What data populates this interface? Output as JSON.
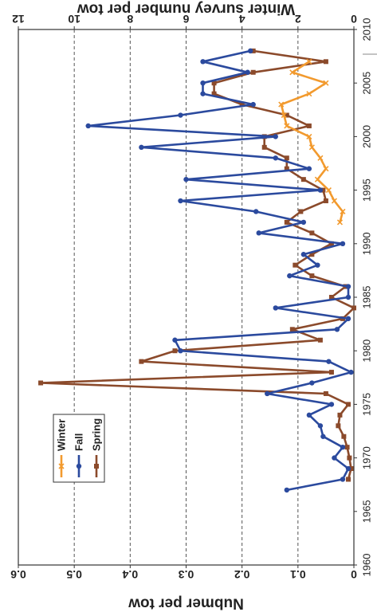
{
  "chart_data": {
    "type": "line",
    "orientation": "rotated-90-clockwise",
    "x": {
      "label": "",
      "range": [
        1960,
        2010
      ],
      "ticks": [
        "1960",
        "1965",
        "1970",
        "1975",
        "1980",
        "1985",
        "1990",
        "1995",
        "2000",
        "2005",
        "2010"
      ]
    },
    "y_left": {
      "label": "Nubmer per tow",
      "range": [
        0,
        0.6
      ],
      "ticks": [
        "0",
        "0.1",
        "0.2",
        "0.3",
        "0.4",
        "0.5",
        "0.6"
      ]
    },
    "y_right": {
      "label": "Winter survey number per tow",
      "range": [
        0,
        12
      ],
      "ticks": [
        "0",
        "2",
        "4",
        "6",
        "8",
        "10",
        "12"
      ]
    },
    "gridlines": "horizontal dashed",
    "legend_position": "upper-left",
    "series": [
      {
        "name": "Spring",
        "axis": "left",
        "color": "#8B4A2B",
        "marker": "square",
        "points": [
          [
            1968,
            0.01
          ],
          [
            1969,
            0.005
          ],
          [
            1970,
            0.008
          ],
          [
            1971,
            0.012
          ],
          [
            1972,
            0.018
          ],
          [
            1973,
            0.028
          ],
          [
            1974,
            0.025
          ],
          [
            1975,
            0.01
          ],
          [
            1976,
            0.05
          ],
          [
            1977,
            0.56
          ],
          [
            1978,
            0.04
          ],
          [
            1979,
            0.38
          ],
          [
            1980,
            0.32
          ],
          [
            1981,
            0.06
          ],
          [
            1982,
            0.11
          ],
          [
            1983,
            0.02
          ],
          [
            1984,
            0.0
          ],
          [
            1985,
            0.04
          ],
          [
            1986,
            0.015
          ],
          [
            1987,
            0.075
          ],
          [
            1988,
            0.105
          ],
          [
            1989,
            0.075
          ],
          [
            1990,
            0.04
          ],
          [
            1991,
            0.075
          ],
          [
            1992,
            0.12
          ],
          [
            1993,
            0.095
          ],
          [
            1994,
            0.05
          ],
          [
            1995,
            0.055
          ],
          [
            1996,
            0.09
          ],
          [
            1997,
            0.12
          ],
          [
            1998,
            0.12
          ],
          [
            1999,
            0.16
          ],
          [
            2000,
            0.16
          ],
          [
            2001,
            0.08
          ],
          [
            2002,
            0.12
          ],
          [
            2003,
            0.2
          ],
          [
            2004,
            0.25
          ],
          [
            2005,
            0.25
          ],
          [
            2006,
            0.18
          ],
          [
            2007,
            0.05
          ],
          [
            2008,
            0.18
          ]
        ]
      },
      {
        "name": "Fall",
        "axis": "left",
        "color": "#2B4A9E",
        "marker": "circle",
        "points": [
          [
            1967,
            0.12
          ],
          [
            1968,
            0.02
          ],
          [
            1969,
            0.01
          ],
          [
            1970,
            0.035
          ],
          [
            1971,
            0.02
          ],
          [
            1972,
            0.055
          ],
          [
            1973,
            0.06
          ],
          [
            1974,
            0.08
          ],
          [
            1975,
            0.04
          ],
          [
            1976,
            0.155
          ],
          [
            1977,
            0.075
          ],
          [
            1978,
            0.005
          ],
          [
            1979,
            0.045
          ],
          [
            1980,
            0.31
          ],
          [
            1981,
            0.32
          ],
          [
            1982,
            0.03
          ],
          [
            1983,
            0.01
          ],
          [
            1984,
            0.14
          ],
          [
            1985,
            0.01
          ],
          [
            1986,
            0.01
          ],
          [
            1987,
            0.115
          ],
          [
            1988,
            0.065
          ],
          [
            1989,
            0.09
          ],
          [
            1990,
            0.02
          ],
          [
            1991,
            0.17
          ],
          [
            1992,
            0.09
          ],
          [
            1993,
            0.175
          ],
          [
            1994,
            0.31
          ],
          [
            1995,
            0.06
          ],
          [
            1996,
            0.3
          ],
          [
            1997,
            0.08
          ],
          [
            1998,
            0.14
          ],
          [
            1999,
            0.38
          ],
          [
            2000,
            0.14
          ],
          [
            2001,
            0.475
          ],
          [
            2002,
            0.31
          ],
          [
            2003,
            0.18
          ],
          [
            2004,
            0.27
          ],
          [
            2005,
            0.27
          ],
          [
            2006,
            0.19
          ],
          [
            2007,
            0.27
          ],
          [
            2008,
            0.185
          ]
        ]
      },
      {
        "name": "Winter",
        "axis": "right",
        "color": "#F29A2E",
        "marker": "x",
        "points": [
          [
            1992,
            0.5
          ],
          [
            1993,
            0.4
          ],
          [
            1994,
            0.7
          ],
          [
            1995,
            0.9
          ],
          [
            1996,
            1.3
          ],
          [
            1997,
            1.0
          ],
          [
            1998,
            1.2
          ],
          [
            1999,
            1.5
          ],
          [
            2000,
            1.6
          ],
          [
            2001,
            2.4
          ],
          [
            2002,
            2.5
          ],
          [
            2003,
            2.6
          ],
          [
            2004,
            1.6
          ],
          [
            2005,
            1.0
          ],
          [
            2006,
            2.2
          ],
          [
            2007,
            1.6
          ]
        ]
      }
    ]
  }
}
